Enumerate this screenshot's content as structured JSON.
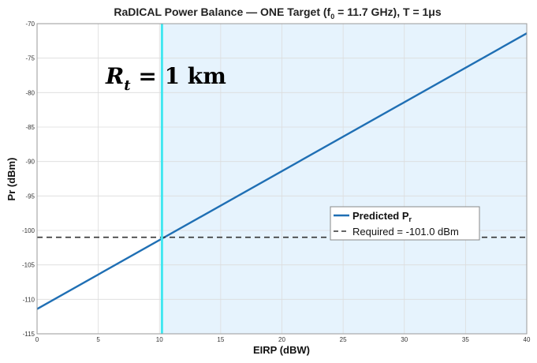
{
  "chart_data": {
    "type": "line",
    "title": "RaDICAL Power Balance — ONE Target (f",
    "title_sub": "0",
    "title_tail": " = 11.7 GHz), T = 1μs",
    "xlabel": "EIRP (dBW)",
    "ylabel": "Pr (dBm)",
    "xlim": [
      0,
      40
    ],
    "ylim": [
      -115,
      -70
    ],
    "xticks": [
      0,
      5,
      10,
      15,
      20,
      25,
      30,
      35,
      40
    ],
    "yticks": [
      -115,
      -110,
      -105,
      -100,
      -95,
      -90,
      -85,
      -80,
      -75,
      -70
    ],
    "grid": true,
    "series": [
      {
        "name": "Predicted  P",
        "name_sub": "r",
        "x": [
          0,
          40
        ],
        "y": [
          -111.4,
          -71.4
        ],
        "color": "#1f6fb4",
        "style": "solid"
      },
      {
        "name": "Required = -101.0 dBm",
        "x": [
          0,
          40
        ],
        "y": [
          -101.0,
          -101.0
        ],
        "color": "#333333",
        "style": "dashed"
      }
    ],
    "vline": {
      "x": 10.2,
      "color": "#40e6f0"
    },
    "shaded_region": {
      "x_from": 10.2,
      "x_to": 40,
      "color": "#e6f3fd"
    },
    "annotation": {
      "text": "R",
      "sub": "t",
      "tail": " = 1 km"
    },
    "legend_placement": "center-right"
  }
}
